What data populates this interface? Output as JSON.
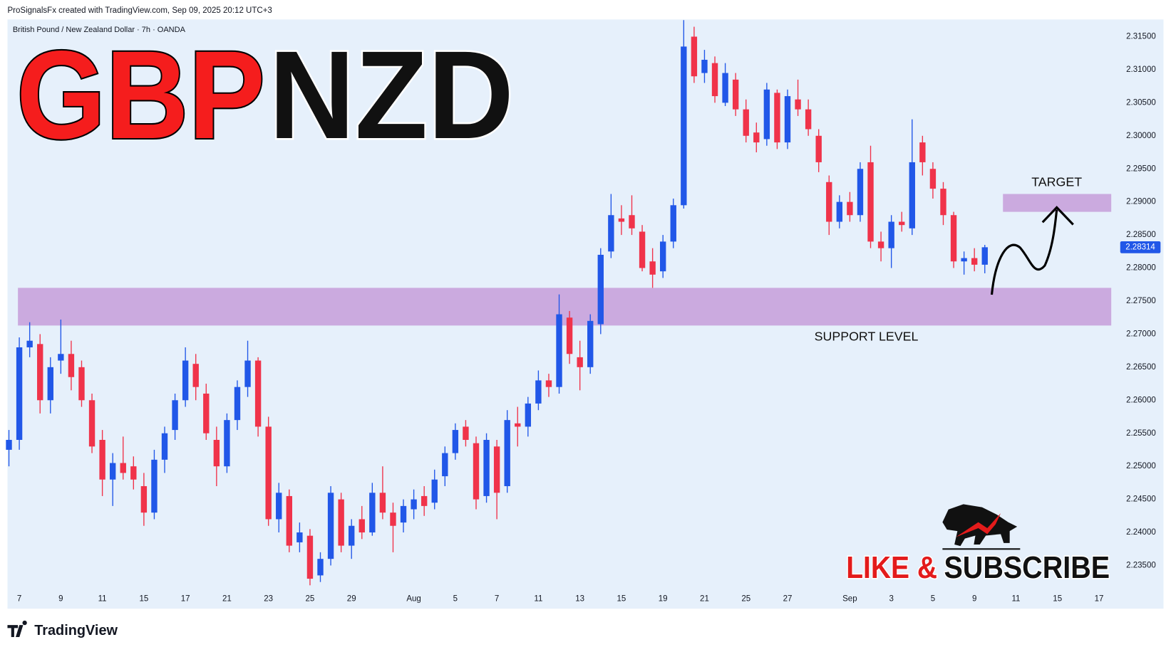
{
  "chart_data": {
    "type": "candlestick",
    "header": {
      "credit": "ProSignalsFx created with TradingView.com, Sep 09, 2025 20:12 UTC+3",
      "symbol": "British Pound / New Zealand Dollar · 7h · OANDA"
    },
    "title_parts": [
      "GBP",
      "NZD"
    ],
    "title_colors": [
      "#f51d1d",
      "#111111"
    ],
    "up_color": "#2157e8",
    "down_color": "#f0334a",
    "ylim": [
      2.2314,
      2.3176
    ],
    "yticks": [
      {
        "value": 2.235,
        "label": "2.23500"
      },
      {
        "value": 2.24,
        "label": "2.24000"
      },
      {
        "value": 2.245,
        "label": "2.24500"
      },
      {
        "value": 2.25,
        "label": "2.25000"
      },
      {
        "value": 2.255,
        "label": "2.25500"
      },
      {
        "value": 2.26,
        "label": "2.26000"
      },
      {
        "value": 2.265,
        "label": "2.26500"
      },
      {
        "value": 2.27,
        "label": "2.27000"
      },
      {
        "value": 2.275,
        "label": "2.27500"
      },
      {
        "value": 2.28,
        "label": "2.28000"
      },
      {
        "value": 2.285,
        "label": "2.28500"
      },
      {
        "value": 2.29,
        "label": "2.29000"
      },
      {
        "value": 2.295,
        "label": "2.29500"
      },
      {
        "value": 2.3,
        "label": "2.30000"
      },
      {
        "value": 2.305,
        "label": "2.30500"
      },
      {
        "value": 2.31,
        "label": "2.31000"
      },
      {
        "value": 2.315,
        "label": "2.31500"
      }
    ],
    "xlim": [
      -0.14,
      106.9
    ],
    "xticks": [
      {
        "value": 1,
        "label": "7"
      },
      {
        "value": 5,
        "label": "9"
      },
      {
        "value": 9,
        "label": "11"
      },
      {
        "value": 13,
        "label": "15"
      },
      {
        "value": 17,
        "label": "17"
      },
      {
        "value": 21,
        "label": "21"
      },
      {
        "value": 25,
        "label": "23"
      },
      {
        "value": 29,
        "label": "25"
      },
      {
        "value": 33,
        "label": "29"
      },
      {
        "value": 39,
        "label": "Aug"
      },
      {
        "value": 43,
        "label": "5"
      },
      {
        "value": 47,
        "label": "7"
      },
      {
        "value": 51,
        "label": "11"
      },
      {
        "value": 55,
        "label": "13"
      },
      {
        "value": 59,
        "label": "15"
      },
      {
        "value": 63,
        "label": "19"
      },
      {
        "value": 67,
        "label": "21"
      },
      {
        "value": 71,
        "label": "25"
      },
      {
        "value": 75,
        "label": "27"
      },
      {
        "value": 81,
        "label": "Sep"
      },
      {
        "value": 85,
        "label": "3"
      },
      {
        "value": 89,
        "label": "5"
      },
      {
        "value": 93,
        "label": "9"
      },
      {
        "value": 97,
        "label": "11"
      },
      {
        "value": 101,
        "label": "15"
      },
      {
        "value": 105,
        "label": "17"
      }
    ],
    "grid": false,
    "ohlc": [
      [
        2.2525,
        2.2555,
        2.25,
        2.254
      ],
      [
        2.254,
        2.2695,
        2.2525,
        2.268
      ],
      [
        2.268,
        2.2718,
        2.2665,
        2.269
      ],
      [
        2.2685,
        2.27,
        2.258,
        2.26
      ],
      [
        2.26,
        2.2665,
        2.258,
        2.265
      ],
      [
        2.266,
        2.2722,
        2.264,
        2.267
      ],
      [
        2.267,
        2.269,
        2.2615,
        2.2635
      ],
      [
        2.265,
        2.266,
        2.259,
        2.26
      ],
      [
        2.26,
        2.261,
        2.252,
        2.253
      ],
      [
        2.254,
        2.2555,
        2.2455,
        2.248
      ],
      [
        2.248,
        2.252,
        2.244,
        2.2505
      ],
      [
        2.2505,
        2.2545,
        2.248,
        2.249
      ],
      [
        2.25,
        2.2515,
        2.2465,
        2.248
      ],
      [
        2.247,
        2.249,
        2.241,
        2.243
      ],
      [
        2.243,
        2.2525,
        2.242,
        2.251
      ],
      [
        2.251,
        2.256,
        2.249,
        2.255
      ],
      [
        2.2555,
        2.261,
        2.254,
        2.26
      ],
      [
        2.26,
        2.268,
        2.259,
        2.266
      ],
      [
        2.2655,
        2.267,
        2.26,
        2.262
      ],
      [
        2.261,
        2.2625,
        2.254,
        2.255
      ],
      [
        2.254,
        2.256,
        2.247,
        2.25
      ],
      [
        2.25,
        2.258,
        2.249,
        2.257
      ],
      [
        2.257,
        2.263,
        2.2555,
        2.262
      ],
      [
        2.262,
        2.269,
        2.2605,
        2.266
      ],
      [
        2.266,
        2.2665,
        2.2545,
        2.256
      ],
      [
        2.256,
        2.2575,
        2.241,
        2.242
      ],
      [
        2.242,
        2.2475,
        2.24,
        2.246
      ],
      [
        2.2455,
        2.2465,
        2.237,
        2.238
      ],
      [
        2.2385,
        2.2415,
        2.237,
        2.24
      ],
      [
        2.2395,
        2.2405,
        2.232,
        2.233
      ],
      [
        2.2335,
        2.237,
        2.2325,
        2.236
      ],
      [
        2.236,
        2.247,
        2.235,
        2.246
      ],
      [
        2.245,
        2.246,
        2.237,
        2.238
      ],
      [
        2.238,
        2.242,
        2.236,
        2.241
      ],
      [
        2.242,
        2.244,
        2.239,
        2.24
      ],
      [
        2.24,
        2.2475,
        2.2395,
        2.246
      ],
      [
        2.246,
        2.25,
        2.242,
        2.243
      ],
      [
        2.243,
        2.2445,
        2.237,
        2.241
      ],
      [
        2.2415,
        2.245,
        2.24,
        2.244
      ],
      [
        2.2435,
        2.2465,
        2.242,
        2.245
      ],
      [
        2.2455,
        2.247,
        2.2425,
        2.244
      ],
      [
        2.2445,
        2.2495,
        2.2435,
        2.248
      ],
      [
        2.2485,
        2.253,
        2.247,
        2.252
      ],
      [
        2.252,
        2.2565,
        2.251,
        2.2555
      ],
      [
        2.256,
        2.257,
        2.253,
        2.254
      ],
      [
        2.2535,
        2.2545,
        2.2435,
        2.245
      ],
      [
        2.2455,
        2.255,
        2.2445,
        2.254
      ],
      [
        2.253,
        2.254,
        2.242,
        2.246
      ],
      [
        2.247,
        2.2585,
        2.246,
        2.257
      ],
      [
        2.2565,
        2.259,
        2.253,
        2.256
      ],
      [
        2.256,
        2.2605,
        2.2545,
        2.2595
      ],
      [
        2.2595,
        2.2645,
        2.2585,
        2.263
      ],
      [
        2.263,
        2.264,
        2.2605,
        2.262
      ],
      [
        2.262,
        2.276,
        2.261,
        2.273
      ],
      [
        2.2725,
        2.2735,
        2.2655,
        2.267
      ],
      [
        2.2665,
        2.269,
        2.2615,
        2.265
      ],
      [
        2.265,
        2.273,
        2.264,
        2.272
      ],
      [
        2.2715,
        2.283,
        2.27,
        2.282
      ],
      [
        2.2825,
        2.2912,
        2.2815,
        2.288
      ],
      [
        2.2875,
        2.2895,
        2.285,
        2.287
      ],
      [
        2.288,
        2.291,
        2.285,
        2.286
      ],
      [
        2.2855,
        2.2865,
        2.2795,
        2.28
      ],
      [
        2.281,
        2.283,
        2.277,
        2.279
      ],
      [
        2.2795,
        2.285,
        2.2785,
        2.284
      ],
      [
        2.284,
        2.2905,
        2.283,
        2.2895
      ],
      [
        2.2895,
        2.3175,
        2.289,
        2.3135
      ],
      [
        2.315,
        2.3165,
        2.308,
        2.309
      ],
      [
        2.3095,
        2.313,
        2.308,
        2.3115
      ],
      [
        2.311,
        2.312,
        2.305,
        2.306
      ],
      [
        2.305,
        2.311,
        2.3045,
        2.3095
      ],
      [
        2.3085,
        2.3095,
        2.303,
        2.304
      ],
      [
        2.304,
        2.3055,
        2.299,
        2.3
      ],
      [
        2.3005,
        2.302,
        2.2975,
        2.299
      ],
      [
        2.2995,
        2.308,
        2.2985,
        2.307
      ],
      [
        2.3065,
        2.307,
        2.298,
        2.299
      ],
      [
        2.299,
        2.307,
        2.298,
        2.306
      ],
      [
        2.3055,
        2.3085,
        2.303,
        2.304
      ],
      [
        2.304,
        2.3055,
        2.3,
        2.301
      ],
      [
        2.3,
        2.301,
        2.2945,
        2.296
      ],
      [
        2.293,
        2.294,
        2.285,
        2.287
      ],
      [
        2.287,
        2.291,
        2.286,
        2.29
      ],
      [
        2.29,
        2.2915,
        2.287,
        2.288
      ],
      [
        2.288,
        2.296,
        2.287,
        2.295
      ],
      [
        2.296,
        2.2985,
        2.283,
        2.284
      ],
      [
        2.284,
        2.2855,
        2.281,
        2.283
      ],
      [
        2.283,
        2.288,
        2.28,
        2.287
      ],
      [
        2.287,
        2.2885,
        2.2855,
        2.2865
      ],
      [
        2.286,
        2.3025,
        2.285,
        2.296
      ],
      [
        2.299,
        2.3,
        2.294,
        2.296
      ],
      [
        2.295,
        2.296,
        2.2905,
        2.292
      ],
      [
        2.292,
        2.293,
        2.2865,
        2.288
      ],
      [
        2.288,
        2.2885,
        2.28,
        2.281
      ],
      [
        2.281,
        2.2825,
        2.279,
        2.2815
      ],
      [
        2.2815,
        2.283,
        2.2795,
        2.2805
      ],
      [
        2.2805,
        2.2835,
        2.2792,
        2.28314
      ]
    ],
    "last_price": 2.28314,
    "zones": [
      {
        "label": "SUPPORT LEVEL",
        "range": [
          2.2713,
          2.277
        ],
        "color": "#cbaadf"
      },
      {
        "label": "TARGET",
        "range": [
          2.2885,
          2.2912
        ],
        "color": "#cbaadf"
      }
    ],
    "cta": [
      "LIKE &",
      "SUBSCRIBE"
    ],
    "footer": {
      "brand": "TradingView"
    }
  }
}
